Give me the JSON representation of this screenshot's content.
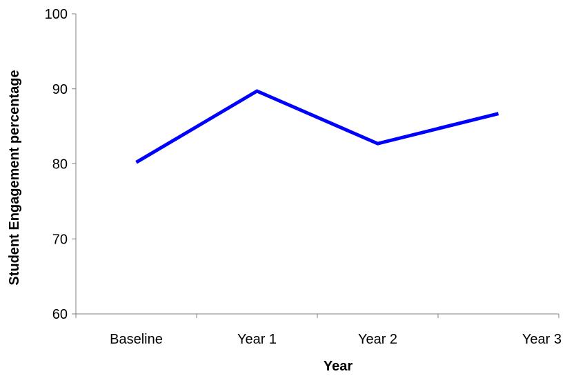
{
  "chart_data": {
    "type": "line",
    "title": "",
    "xlabel": "Year",
    "ylabel": "Student Engagement percentage",
    "categories": [
      "Baseline",
      "Year 1",
      "Year 2",
      "Year 3"
    ],
    "ylim": [
      60,
      100
    ],
    "yticks": [
      "60",
      "70",
      "80",
      "90",
      "100"
    ],
    "grid": false,
    "legend": "none",
    "series": [
      {
        "values": [
          80.2,
          89.7,
          82.7,
          86.7
        ],
        "color": "#0000ff"
      }
    ]
  }
}
